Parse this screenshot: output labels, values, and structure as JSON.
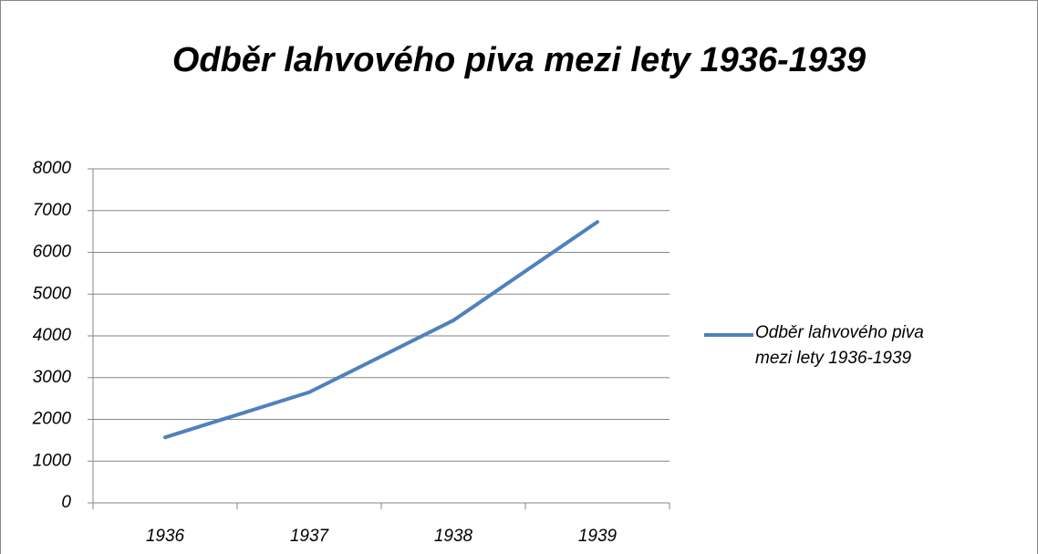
{
  "chart_data": {
    "type": "line",
    "title": "Odběr lahvového piva mezi lety 1936-1939",
    "categories": [
      "1936",
      "1937",
      "1938",
      "1939"
    ],
    "series": [
      {
        "name": "Odběr lahvového piva mezi lety 1936-1939",
        "color": "#4f81bd",
        "values": [
          1570,
          2650,
          4370,
          6730
        ]
      }
    ],
    "ylim": [
      0,
      8000
    ],
    "yticks": [
      0,
      1000,
      2000,
      3000,
      4000,
      5000,
      6000,
      7000,
      8000
    ],
    "grid": true,
    "legend": "right"
  }
}
